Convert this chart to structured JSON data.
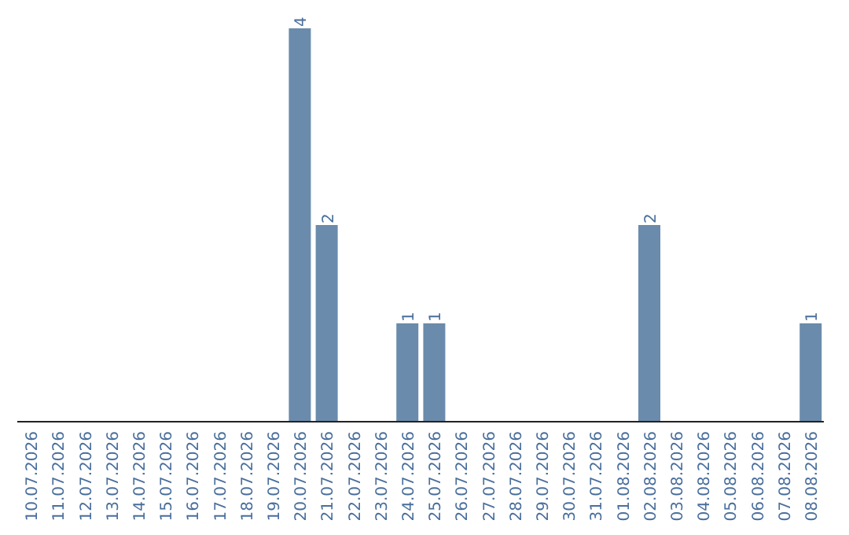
{
  "chart_data": {
    "type": "bar",
    "categories": [
      "10.07.2026",
      "11.07.2026",
      "12.07.2026",
      "13.07.2026",
      "14.07.2026",
      "15.07.2026",
      "16.07.2026",
      "17.07.2026",
      "18.07.2026",
      "19.07.2026",
      "20.07.2026",
      "21.07.2026",
      "22.07.2026",
      "23.07.2026",
      "24.07.2026",
      "25.07.2026",
      "26.07.2026",
      "27.07.2026",
      "28.07.2026",
      "29.07.2026",
      "30.07.2026",
      "31.07.2026",
      "01.08.2026",
      "02.08.2026",
      "03.08.2026",
      "04.08.2026",
      "05.08.2026",
      "06.08.2026",
      "07.08.2026",
      "08.08.2026"
    ],
    "values": [
      0,
      0,
      0,
      0,
      0,
      0,
      0,
      0,
      0,
      0,
      4,
      2,
      0,
      0,
      1,
      1,
      0,
      0,
      0,
      0,
      0,
      0,
      0,
      2,
      0,
      0,
      0,
      0,
      0,
      1
    ],
    "value_labels": [
      null,
      null,
      null,
      null,
      null,
      null,
      null,
      null,
      null,
      null,
      "4",
      "2",
      null,
      null,
      "1",
      "1",
      null,
      null,
      null,
      null,
      null,
      null,
      null,
      "2",
      null,
      null,
      null,
      null,
      null,
      "1"
    ],
    "color": "#6a8bab"
  }
}
